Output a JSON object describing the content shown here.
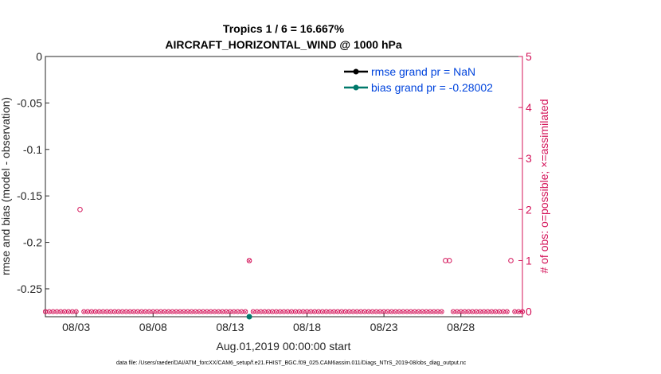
{
  "chart_data": {
    "type": "scatter",
    "title": "Tropics 1 / 6 = 16.667%",
    "subtitle": "AIRCRAFT_HORIZONTAL_WIND @ 1000 hPa",
    "xlabel": "Aug.01,2019 00:00:00 start",
    "ylabel": "rmse and bias (model - observation)",
    "ylabel_right": "# of obs: o=possible; ×=assimilated",
    "xlim": [
      1.0,
      32.0
    ],
    "ylim": [
      -0.28,
      0
    ],
    "ylim_right": [
      -0.1,
      5
    ],
    "x_ticks": [
      3,
      8,
      13,
      18,
      23,
      28
    ],
    "x_tick_labels": [
      "08/03",
      "08/08",
      "08/13",
      "08/18",
      "08/23",
      "08/28"
    ],
    "y_ticks": [
      0,
      -0.05,
      -0.1,
      -0.15,
      -0.2,
      -0.25
    ],
    "y_tick_labels": [
      "0",
      "-0.05",
      "-0.1",
      "-0.15",
      "-0.2",
      "-0.25"
    ],
    "y_right_ticks": [
      5,
      4,
      3,
      2,
      1,
      0
    ],
    "y_right_tick_labels": [
      "5",
      "4",
      "3",
      "2",
      "1",
      "0"
    ],
    "legend": [
      {
        "name": "rmse grand pr = NaN",
        "color": "#000000"
      },
      {
        "name": "bias grand pr = -0.28002",
        "color": "#00796b"
      }
    ],
    "legend_position": "top-right",
    "series": [
      {
        "name": "rmse",
        "x": [
          14.25
        ],
        "y": [
          null
        ],
        "color": "#000000"
      },
      {
        "name": "bias",
        "x": [
          14.25
        ],
        "y": [
          -0.28002
        ],
        "color": "#00796b"
      },
      {
        "name": "obs possible (nonzero)",
        "x": [
          3.25,
          14.25,
          27.0,
          27.25,
          31.25
        ],
        "y": [
          2,
          1,
          1,
          1,
          1
        ],
        "color": "#d4145a"
      },
      {
        "name": "obs assimilated",
        "x": [
          14.25
        ],
        "y": [
          1
        ],
        "color": "#d4145a"
      },
      {
        "name": "obs possible (zero)",
        "range_start": 1.0,
        "range_end": 32.0,
        "step": 0.25,
        "value": 0,
        "color": "#d4145a"
      }
    ]
  },
  "footer": "data file: /Users/raeder/DAI/ATM_forcXX/CAM6_setup/f.e21.FHIST_BGC.f09_025.CAM6assim.011/Diags_NTrS_2019-08/obs_diag_output.nc"
}
